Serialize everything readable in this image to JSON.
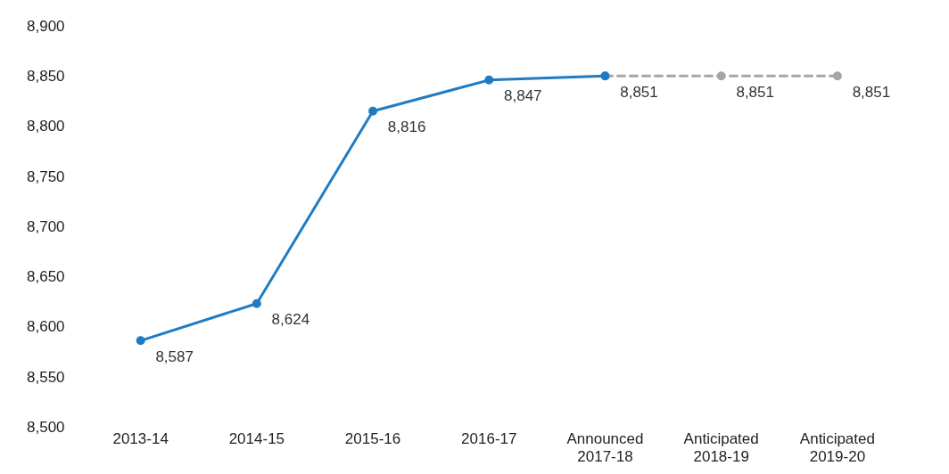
{
  "chart_data": {
    "type": "line",
    "categories": [
      "2013-14",
      "2014-15",
      "2015-16",
      "2016-17",
      "Announced\n2017-18",
      "Anticipated\n2018-19",
      "Anticipated\n2019-20"
    ],
    "series": [
      {
        "color": "#1f7cc4",
        "values": [
          8587,
          8624,
          8816,
          8847,
          8851,
          null,
          null
        ],
        "value_labels": [
          "8,587",
          "8,624",
          "8,816",
          "8,847",
          "8,851",
          null,
          null
        ]
      },
      {
        "color": "#a6a6a6",
        "line_style": "dashed",
        "values": [
          null,
          null,
          null,
          null,
          8851,
          8851,
          8851
        ],
        "value_labels": [
          null,
          null,
          null,
          null,
          null,
          "8,851",
          "8,851"
        ]
      }
    ],
    "ylim": [
      8500,
      8900
    ],
    "yticks": [
      {
        "value": 8500,
        "label": "8,500"
      },
      {
        "value": 8550,
        "label": "8,550"
      },
      {
        "value": 8600,
        "label": "8,600"
      },
      {
        "value": 8650,
        "label": "8,650"
      },
      {
        "value": 8700,
        "label": "8,700"
      },
      {
        "value": 8750,
        "label": "8,750"
      },
      {
        "value": 8800,
        "label": "8,800"
      },
      {
        "value": 8850,
        "label": "8,850"
      },
      {
        "value": 8900,
        "label": "8,900"
      }
    ],
    "grid": false,
    "legend": false,
    "marker": "circle"
  }
}
